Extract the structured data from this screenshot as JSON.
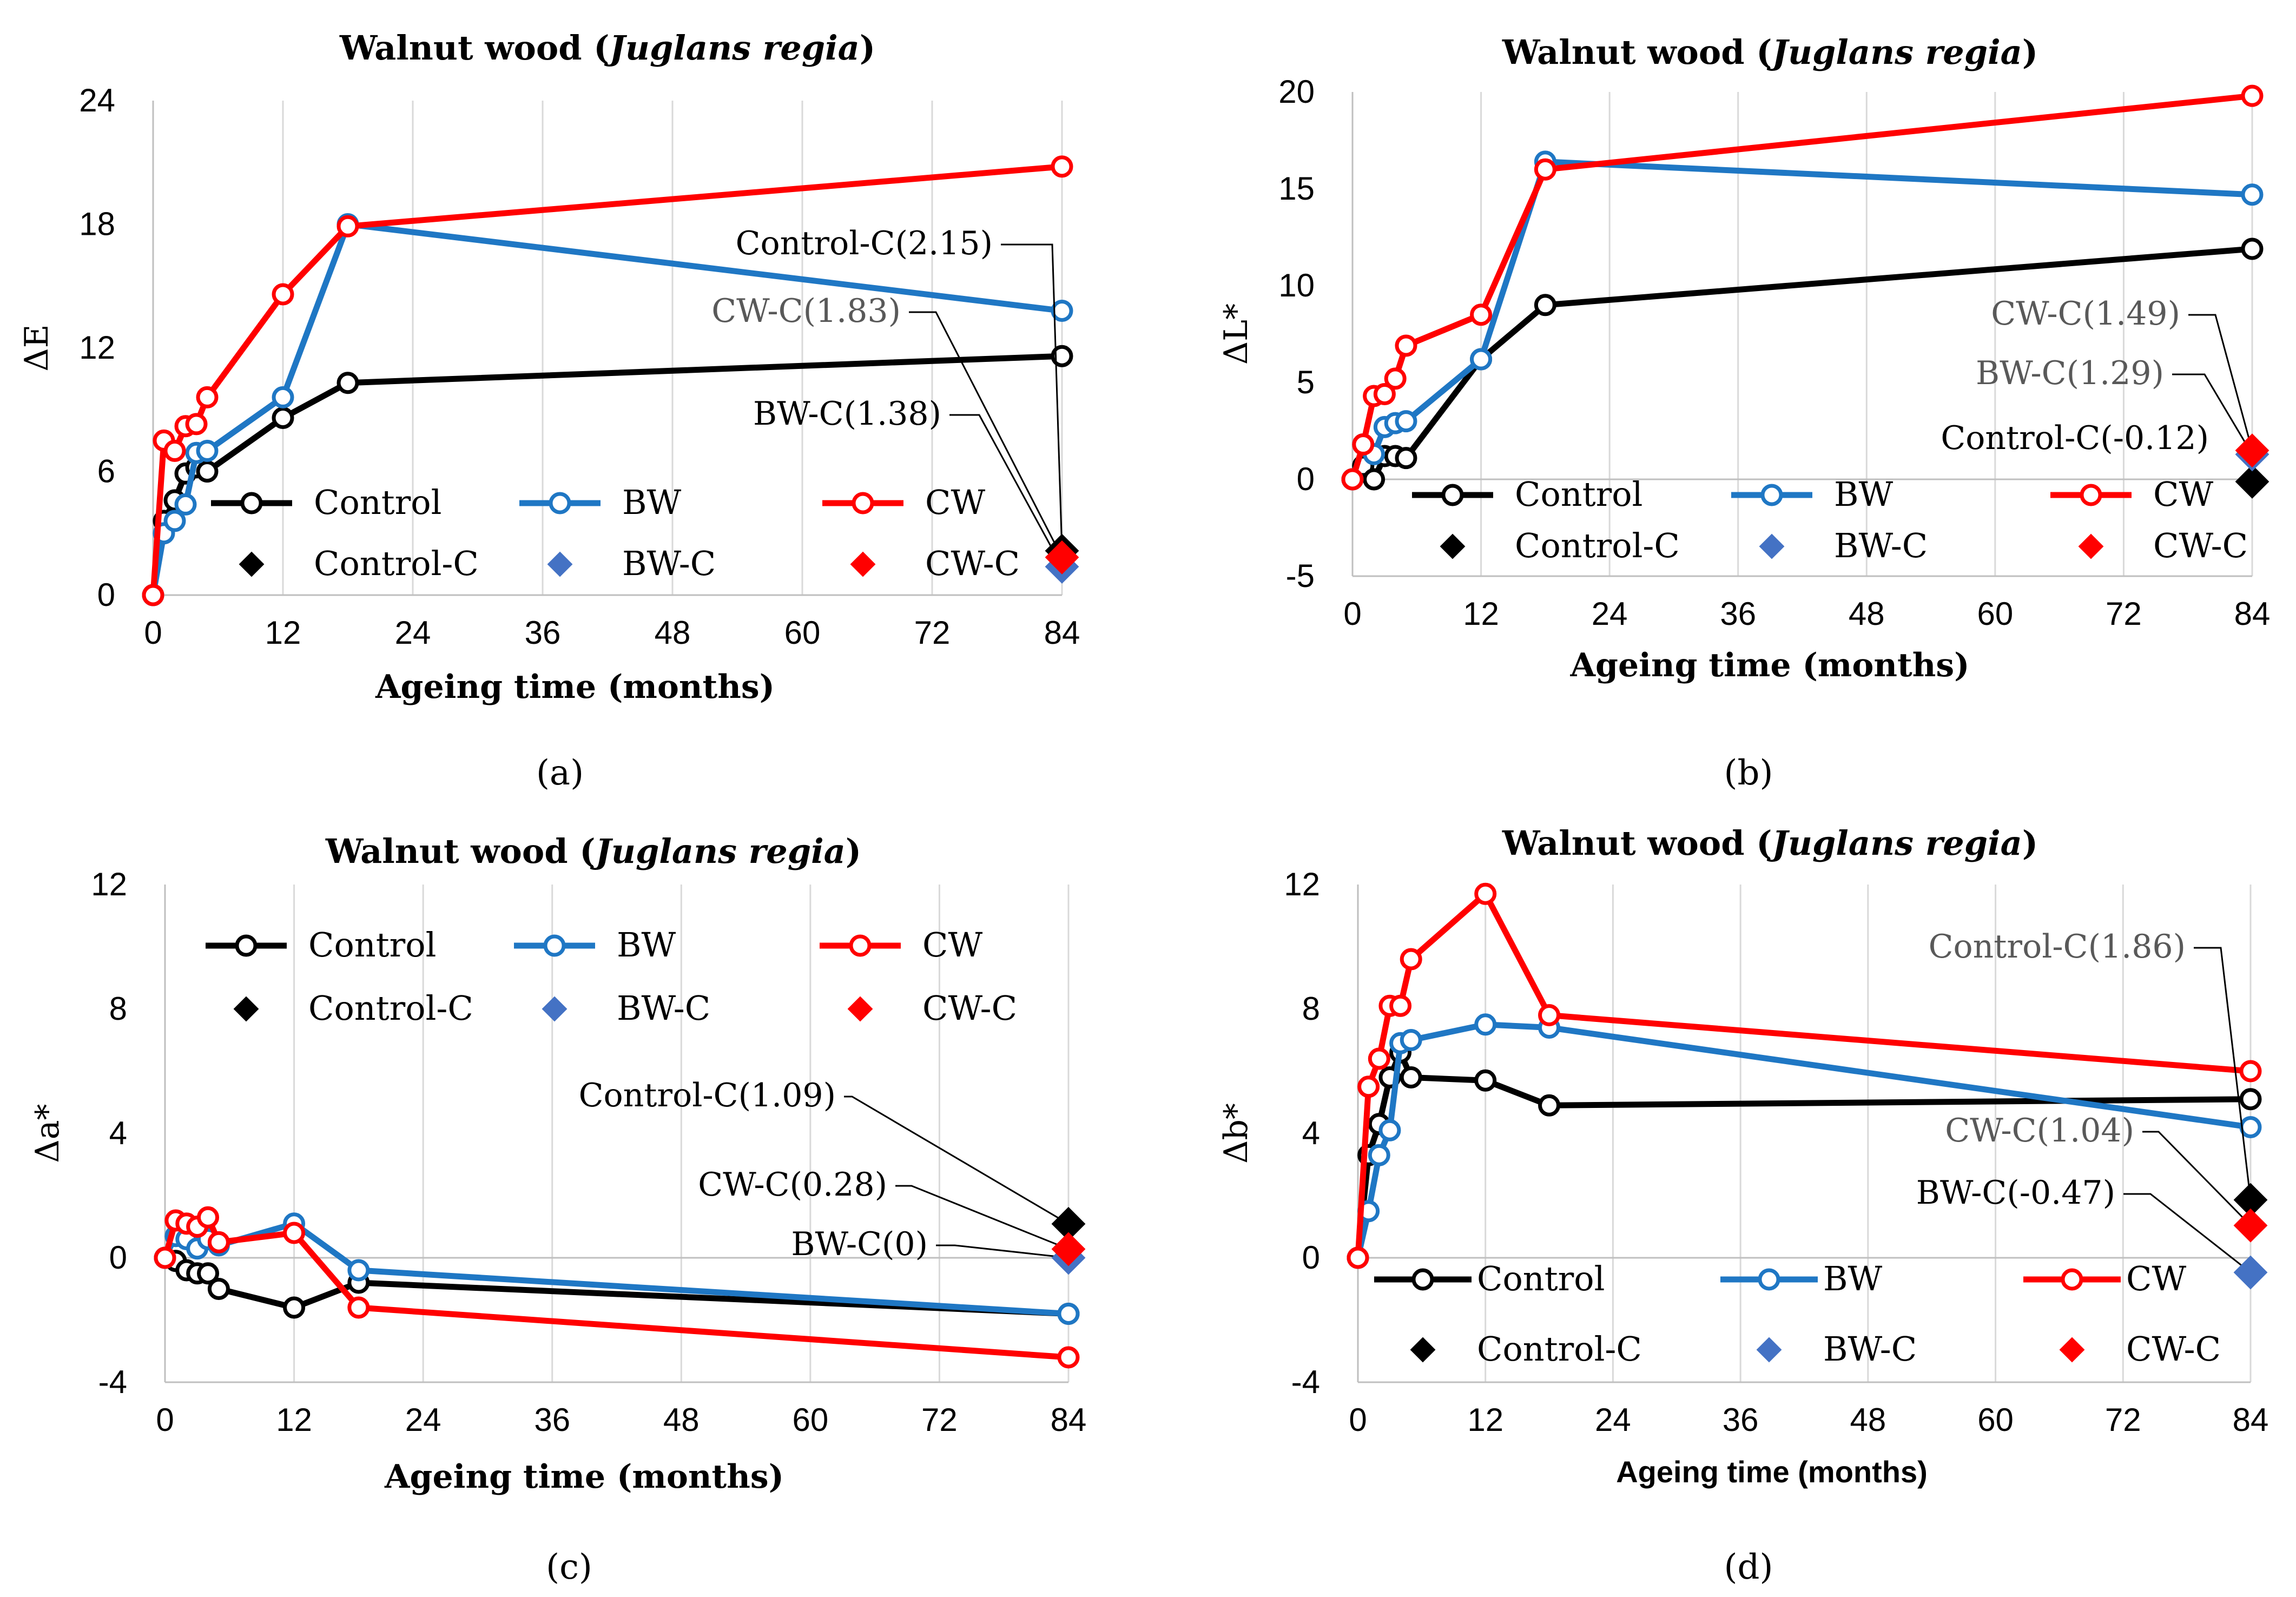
{
  "colors": {
    "Control": "#000000",
    "BW": "#1f77c4",
    "CW": "#ff0000",
    "BW_C": "#4472c4",
    "grid": "#d9d9d9",
    "axis": "#bfbfbf",
    "annot_gray": "#595959"
  },
  "chart_data": [
    {
      "type": "line",
      "panel": "(a)",
      "title_prefix": "Walnut wood (",
      "title_italic": "Juglans regia",
      "title_suffix": ")",
      "xlabel": "Ageing time (months)",
      "ylabel": "ΔE",
      "xlim": [
        0,
        84
      ],
      "ylim": [
        0,
        24
      ],
      "xticks": [
        0,
        12,
        24,
        36,
        48,
        60,
        72,
        84
      ],
      "yticks": [
        0,
        6,
        12,
        18,
        24
      ],
      "x": [
        0,
        1,
        2,
        3,
        4,
        5,
        12,
        18,
        84
      ],
      "series": [
        {
          "name": "Control",
          "values": [
            0,
            3.6,
            4.6,
            5.9,
            6.2,
            6.0,
            8.6,
            10.3,
            11.6
          ]
        },
        {
          "name": "BW",
          "values": [
            0,
            3.0,
            3.6,
            4.4,
            6.9,
            7.0,
            9.6,
            18.0,
            13.8
          ]
        },
        {
          "name": "CW",
          "values": [
            0,
            7.5,
            7.0,
            8.2,
            8.3,
            9.6,
            14.6,
            17.9,
            20.8
          ]
        }
      ],
      "markers": [
        {
          "name": "Control-C",
          "x": 84,
          "value": 2.15,
          "label": "Control-C(2.15)"
        },
        {
          "name": "BW-C",
          "x": 84,
          "value": 1.38,
          "label": "BW-C(1.38)"
        },
        {
          "name": "CW-C",
          "x": 84,
          "value": 1.83,
          "label": "CW-C(1.83)"
        }
      ],
      "legend": [
        "Control",
        "BW",
        "CW",
        "Control-C",
        "BW-C",
        "CW-C"
      ]
    },
    {
      "type": "line",
      "panel": "(b)",
      "title_prefix": "Walnut wood (",
      "title_italic": "Juglans regia",
      "title_suffix": ")",
      "xlabel": "Ageing time (months)",
      "ylabel": "ΔL*",
      "xlim": [
        0,
        84
      ],
      "ylim": [
        -5,
        20
      ],
      "xticks": [
        0,
        12,
        24,
        36,
        48,
        60,
        72,
        84
      ],
      "yticks": [
        -5,
        0,
        5,
        10,
        15,
        20
      ],
      "x": [
        0,
        1,
        2,
        3,
        4,
        5,
        12,
        18,
        84
      ],
      "series": [
        {
          "name": "Control",
          "values": [
            0,
            0.7,
            0.0,
            1.2,
            1.2,
            1.1,
            6.2,
            9.0,
            11.9
          ]
        },
        {
          "name": "BW",
          "values": [
            0,
            1.8,
            1.3,
            2.7,
            2.9,
            3.0,
            6.2,
            16.4,
            14.7
          ]
        },
        {
          "name": "CW",
          "values": [
            0,
            1.8,
            4.3,
            4.4,
            5.2,
            6.9,
            8.5,
            16.0,
            19.8
          ]
        }
      ],
      "markers": [
        {
          "name": "Control-C",
          "x": 84,
          "value": -0.12,
          "label": "Control-C(-0.12)"
        },
        {
          "name": "BW-C",
          "x": 84,
          "value": 1.29,
          "label": "BW-C(1.29)"
        },
        {
          "name": "CW-C",
          "x": 84,
          "value": 1.49,
          "label": "CW-C(1.49)"
        }
      ],
      "legend": [
        "Control",
        "BW",
        "CW",
        "Control-C",
        "BW-C",
        "CW-C"
      ]
    },
    {
      "type": "line",
      "panel": "(c)",
      "title_prefix": "Walnut wood (",
      "title_italic": "Juglans regia",
      "title_suffix": ")",
      "xlabel": "Ageing time (months)",
      "ylabel": "Δa*",
      "xlim": [
        0,
        84
      ],
      "ylim": [
        -4,
        12
      ],
      "xticks": [
        0,
        12,
        24,
        36,
        48,
        60,
        72,
        84
      ],
      "yticks": [
        -4,
        0,
        4,
        8,
        12
      ],
      "x": [
        0,
        1,
        2,
        3,
        4,
        5,
        12,
        18,
        84
      ],
      "series": [
        {
          "name": "Control",
          "values": [
            0,
            -0.1,
            -0.4,
            -0.5,
            -0.5,
            -1.0,
            -1.6,
            -0.8,
            -1.8
          ]
        },
        {
          "name": "BW",
          "values": [
            0,
            0.7,
            0.6,
            0.3,
            0.6,
            0.4,
            1.1,
            -0.4,
            -1.8
          ]
        },
        {
          "name": "CW",
          "values": [
            0,
            1.2,
            1.1,
            1.0,
            1.3,
            0.5,
            0.8,
            -1.6,
            -3.2
          ]
        }
      ],
      "markers": [
        {
          "name": "Control-C",
          "x": 84,
          "value": 1.09,
          "label": "Control-C(1.09)"
        },
        {
          "name": "BW-C",
          "x": 84,
          "value": 0,
          "label": "BW-C(0)"
        },
        {
          "name": "CW-C",
          "x": 84,
          "value": 0.28,
          "label": "CW-C(0.28)"
        }
      ],
      "legend": [
        "Control",
        "BW",
        "CW",
        "Control-C",
        "BW-C",
        "CW-C"
      ]
    },
    {
      "type": "line",
      "panel": "(d)",
      "title_prefix": "Walnut wood (",
      "title_italic": "Juglans regia",
      "title_suffix": ")",
      "xlabel": "Ageing time (months)",
      "ylabel": "Δb*",
      "xlim": [
        0,
        84
      ],
      "ylim": [
        -4,
        12
      ],
      "xticks": [
        0,
        12,
        24,
        36,
        48,
        60,
        72,
        84
      ],
      "yticks": [
        -4,
        0,
        4,
        8,
        12
      ],
      "x": [
        0,
        1,
        2,
        3,
        4,
        5,
        12,
        18,
        84
      ],
      "series": [
        {
          "name": "Control",
          "values": [
            0,
            3.3,
            4.3,
            5.8,
            6.6,
            5.8,
            5.7,
            4.9,
            5.1
          ]
        },
        {
          "name": "BW",
          "values": [
            0,
            1.5,
            3.3,
            4.1,
            6.9,
            7.0,
            7.5,
            7.4,
            4.2
          ]
        },
        {
          "name": "CW",
          "values": [
            0,
            5.5,
            6.4,
            8.1,
            8.1,
            9.6,
            11.7,
            7.8,
            6.0
          ]
        }
      ],
      "markers": [
        {
          "name": "Control-C",
          "x": 84,
          "value": 1.86,
          "label": "Control-C(1.86)"
        },
        {
          "name": "BW-C",
          "x": 84,
          "value": -0.47,
          "label": "BW-C(-0.47)"
        },
        {
          "name": "CW-C",
          "x": 84,
          "value": 1.04,
          "label": "CW-C(1.04)"
        }
      ],
      "legend": [
        "Control",
        "BW",
        "CW",
        "Control-C",
        "BW-C",
        "CW-C"
      ]
    }
  ]
}
